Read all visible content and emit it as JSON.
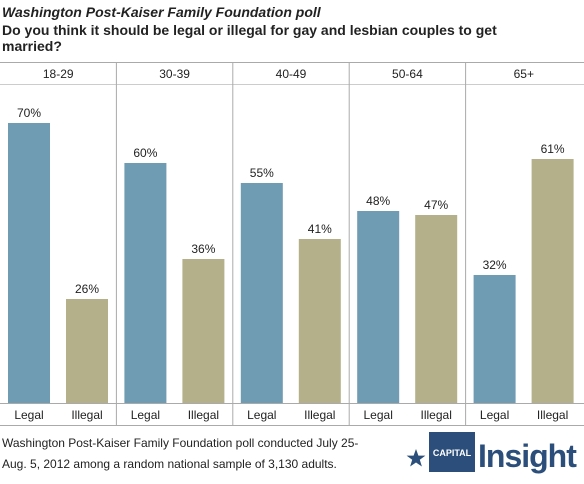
{
  "chart_data": {
    "type": "bar",
    "title": "Washington Post-Kaiser Family Foundation poll",
    "subtitle": [
      "Do you think it should be legal or illegal for gay and lesbian couples to get",
      "married?"
    ],
    "categories": [
      "18-29",
      "30-39",
      "40-49",
      "50-64",
      "65+"
    ],
    "series": [
      {
        "name": "Legal",
        "color": "#6f9bb3",
        "values": [
          70,
          60,
          55,
          48,
          32
        ],
        "value_labels": [
          "70%",
          "60%",
          "55%",
          "48%",
          "32%"
        ]
      },
      {
        "name": "Illegal",
        "color": "#b4b08a",
        "values": [
          26,
          36,
          41,
          47,
          61
        ],
        "value_labels": [
          "26%",
          "36%",
          "41%",
          "47%",
          "61%"
        ]
      }
    ],
    "note": [
      "Washington Post-Kaiser Family Foundation poll conducted July 25-",
      "Aug. 5, 2012 among a random national sample of 3,130 adults."
    ],
    "logo": {
      "small": "CAPITAL",
      "big": "Insight"
    }
  }
}
